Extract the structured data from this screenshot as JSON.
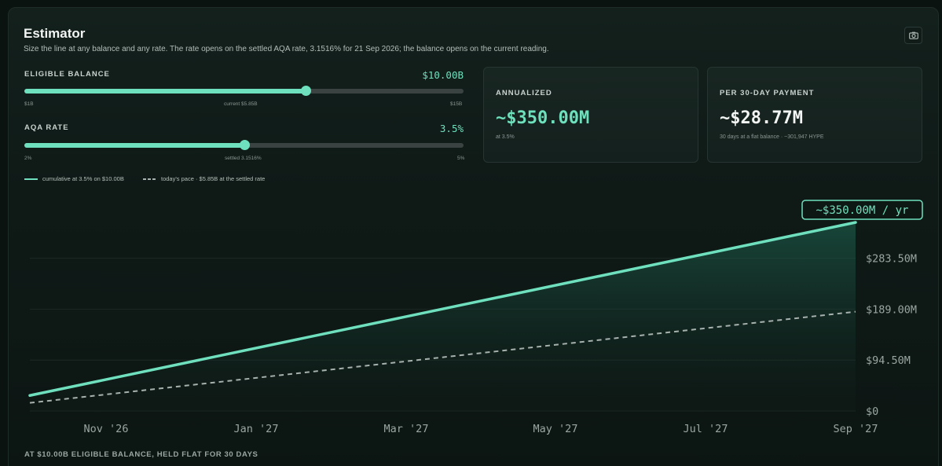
{
  "header": {
    "title": "Estimator",
    "subtitle": "Size the line at any balance and any rate. The rate opens on the settled AQA rate, 3.1516% for 21 Sep 2026; the balance opens on the current reading."
  },
  "balance_slider": {
    "label": "ELIGIBLE BALANCE",
    "value_text": "$10.00B",
    "fraction": 0.64,
    "min_label": "$1B",
    "mid_label": "current $5.85B",
    "max_label": "$15B"
  },
  "rate_slider": {
    "label": "AQA RATE",
    "value_text": "3.5%",
    "fraction": 0.5,
    "min_label": "2%",
    "mid_label": "settled 3.1516%",
    "max_label": "5%"
  },
  "legend": {
    "solid": "cumulative at 3.5% on $10.00B",
    "dashed": "today's pace · $5.85B at the settled rate"
  },
  "cards": {
    "annualized": {
      "label": "ANNUALIZED",
      "value": "~$350.00M",
      "note": "at 3.5%"
    },
    "per_payment": {
      "label": "PER 30-DAY PAYMENT",
      "value": "~$28.77M",
      "note": "30 days at a flat balance · ~301,947 HYPE"
    }
  },
  "colors": {
    "accent": "#6fe0bd",
    "dashed": "#a7b2ae",
    "white": "#f2f5f4"
  },
  "chart_data": {
    "type": "area",
    "end_badge": "~$350.00M / yr",
    "x_ticks": [
      "Nov '26",
      "Jan '27",
      "Mar '27",
      "May '27",
      "Jul '27",
      "Sep '27"
    ],
    "y_ticks": [
      "$0",
      "$94.50M",
      "$189.00M",
      "$283.50M"
    ],
    "ylim": [
      0,
      350
    ],
    "series": [
      {
        "style": "solid",
        "x": [
          "Sep '26",
          "Sep '27"
        ],
        "y": [
          28.77,
          350.0
        ]
      },
      {
        "style": "dashed",
        "x": [
          "Sep '26",
          "Sep '27"
        ],
        "y": [
          15.1,
          184.3
        ]
      }
    ]
  },
  "footer": {
    "note": "AT $10.00B ELIGIBLE BALANCE, HELD FLAT FOR 30 DAYS"
  }
}
